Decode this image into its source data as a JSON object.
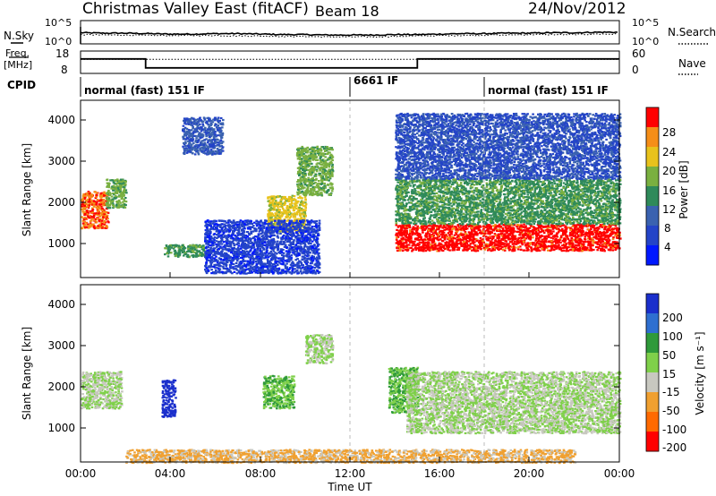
{
  "header": {
    "title": "Christmas Valley East (fitACF)",
    "beam": "Beam 18",
    "date": "24/Nov/2012"
  },
  "noise_panel": {
    "left_label": "N.Sky",
    "right_label": "N.Search",
    "left_ticks": [
      "10^5",
      "10^0"
    ],
    "right_ticks": [
      "10^5",
      "10^0"
    ]
  },
  "freq_panel": {
    "left_label_1": "Freq.",
    "left_label_2": "[MHz]",
    "right_label": "Nave",
    "left_ticks": [
      "18",
      "8"
    ],
    "right_ticks": [
      "60",
      "0"
    ]
  },
  "cpid": {
    "label": "CPID",
    "segments": [
      {
        "text": "normal (fast) 151 IF",
        "start": 0.0
      },
      {
        "text": "6661 IF",
        "start": 12.0
      },
      {
        "text": "normal (fast) 151 IF",
        "start": 18.0
      }
    ]
  },
  "x_axis": {
    "ticks": [
      "00:00",
      "04:00",
      "08:00",
      "12:00",
      "16:00",
      "20:00",
      "00:00"
    ],
    "label": "Time UT"
  },
  "power_panel": {
    "ylabel": "Slant Range [km]",
    "yticks": [
      "1000",
      "2000",
      "3000",
      "4000"
    ],
    "colorbar_label": "Power [dB]",
    "colorbar_ticks": [
      "4",
      "8",
      "12",
      "16",
      "20",
      "24",
      "28"
    ],
    "colors": [
      "#0018ff",
      "#2444c8",
      "#3a62b0",
      "#2f8a5a",
      "#7ab040",
      "#e8c21c",
      "#f58e18",
      "#ff0000"
    ]
  },
  "velocity_panel": {
    "ylabel": "Slant Range [km]",
    "yticks": [
      "1000",
      "2000",
      "3000",
      "4000"
    ],
    "colorbar_label": "Velocity [m s⁻¹]",
    "colorbar_ticks": [
      "200",
      "100",
      "50",
      "15",
      "-15",
      "-50",
      "-100",
      "-200"
    ],
    "colors": [
      "#1a2fcc",
      "#2e6fd0",
      "#2f9a3a",
      "#7fd04a",
      "#c8c8c0",
      "#f0a030",
      "#ff6a00",
      "#ff0000"
    ]
  },
  "chart_data": [
    {
      "type": "line",
      "title": "N.Sky / N.Search",
      "x_unit": "hours UT",
      "x": [
        0,
        1,
        2,
        3,
        4,
        5,
        6,
        7,
        8,
        9,
        10,
        11,
        12,
        13,
        14,
        15,
        16,
        17,
        18,
        19,
        20,
        21,
        22,
        23,
        24
      ],
      "series": [
        {
          "name": "N.Sky",
          "values": [
            2.4,
            2.3,
            2.3,
            2.2,
            2.1,
            2.1,
            2.2,
            2.2,
            2.1,
            2.0,
            2.0,
            1.9,
            1.9,
            1.9,
            2.0,
            2.0,
            2.1,
            2.2,
            2.2,
            2.3,
            2.3,
            2.4,
            2.4,
            2.5,
            2.5
          ]
        },
        {
          "name": "N.Search",
          "values": [
            2.0,
            1.9,
            1.9,
            1.8,
            1.8,
            1.8,
            1.8,
            1.7,
            1.7,
            1.6,
            1.6,
            1.5,
            1.5,
            1.5,
            1.6,
            1.7,
            1.8,
            1.8,
            1.9,
            1.9,
            2.0,
            2.0,
            2.0,
            2.1,
            2.1
          ]
        }
      ],
      "ylim": [
        0,
        5
      ],
      "log_scale": true
    },
    {
      "type": "line",
      "title": "Freq. / Nave",
      "x_unit": "hours UT",
      "x": [
        0,
        2.9,
        2.9,
        15.0,
        15.0,
        24
      ],
      "series": [
        {
          "name": "Freq.",
          "values": [
            14.5,
            14.5,
            10.5,
            10.5,
            14.5,
            14.5
          ]
        },
        {
          "name": "Nave",
          "values": [
            38,
            38,
            38,
            38,
            38,
            38
          ]
        }
      ],
      "ylim": [
        8,
        18
      ]
    },
    {
      "type": "heatmap",
      "title": "Power [dB]",
      "xlim": [
        0,
        24
      ],
      "ylim": [
        180,
        4500
      ],
      "clim": [
        0,
        30
      ],
      "features": [
        {
          "t": [
            0.0,
            1.2
          ],
          "r": [
            1400,
            2300
          ],
          "value": 26
        },
        {
          "t": [
            1.1,
            2.0
          ],
          "r": [
            1900,
            2600
          ],
          "value": 16
        },
        {
          "t": [
            3.7,
            5.5
          ],
          "r": [
            700,
            1000
          ],
          "value": 14
        },
        {
          "t": [
            4.5,
            6.3
          ],
          "r": [
            3200,
            4100
          ],
          "value": 8
        },
        {
          "t": [
            8.3,
            10.0
          ],
          "r": [
            1300,
            2200
          ],
          "value": 20
        },
        {
          "t": [
            9.6,
            11.2
          ],
          "r": [
            2200,
            3400
          ],
          "value": 16
        },
        {
          "t": [
            5.5,
            10.6
          ],
          "r": [
            300,
            1600
          ],
          "value": 5
        },
        {
          "t": [
            14.0,
            24.0
          ],
          "r": [
            850,
            1500
          ],
          "value": 28
        },
        {
          "t": [
            14.0,
            24.0
          ],
          "r": [
            1500,
            2600
          ],
          "value": 14
        },
        {
          "t": [
            14.0,
            24.0
          ],
          "r": [
            2600,
            4200
          ],
          "value": 7
        }
      ]
    },
    {
      "type": "heatmap",
      "title": "Velocity [m s⁻¹]",
      "xlim": [
        0,
        24
      ],
      "ylim": [
        180,
        4500
      ],
      "clim": [
        -200,
        200
      ],
      "features": [
        {
          "t": [
            0.0,
            1.8
          ],
          "r": [
            1500,
            2400
          ],
          "value": 0
        },
        {
          "t": [
            3.6,
            4.2
          ],
          "r": [
            1300,
            2200
          ],
          "value": 200
        },
        {
          "t": [
            8.1,
            9.5
          ],
          "r": [
            1500,
            2300
          ],
          "value": 50
        },
        {
          "t": [
            10.0,
            11.2
          ],
          "r": [
            2600,
            3300
          ],
          "value": 0
        },
        {
          "t": [
            13.7,
            15.0
          ],
          "r": [
            1400,
            2500
          ],
          "value": 50
        },
        {
          "t": [
            14.5,
            24.0
          ],
          "r": [
            900,
            2400
          ],
          "value": 0
        },
        {
          "t": [
            2.0,
            22.0
          ],
          "r": [
            180,
            500
          ],
          "value": -60
        }
      ]
    }
  ]
}
